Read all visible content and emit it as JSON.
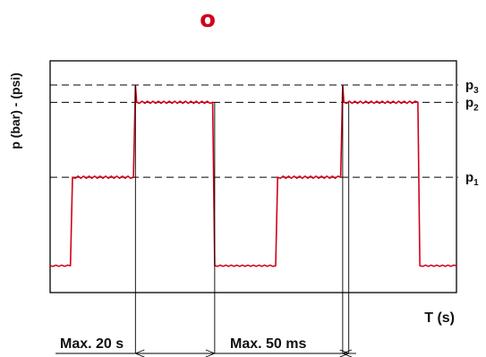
{
  "badge": "o",
  "colors": {
    "signal": "#d0021b",
    "axes": "#000000",
    "badge": "#d0021b"
  },
  "chart_data": {
    "type": "line",
    "ylabel": "p (bar) - (psi)",
    "xlabel": "T (s)",
    "grid": false,
    "reference_levels": [
      {
        "label": "p",
        "sub": "3",
        "level": 1.0
      },
      {
        "label": "p",
        "sub": "2",
        "level": 0.91
      },
      {
        "label": "p",
        "sub": "1",
        "level": 0.52
      }
    ],
    "series": [
      {
        "values": [
          {
            "x": 0.0,
            "y": 0.06
          },
          {
            "x": 0.05,
            "y": 0.06
          },
          {
            "x": 0.055,
            "y": 0.52
          },
          {
            "x": 0.205,
            "y": 0.52
          },
          {
            "x": 0.21,
            "y": 1.0
          },
          {
            "x": 0.213,
            "y": 0.91
          },
          {
            "x": 0.4,
            "y": 0.91
          },
          {
            "x": 0.405,
            "y": 0.06
          },
          {
            "x": 0.555,
            "y": 0.06
          },
          {
            "x": 0.56,
            "y": 0.52
          },
          {
            "x": 0.715,
            "y": 0.52
          },
          {
            "x": 0.72,
            "y": 1.0
          },
          {
            "x": 0.723,
            "y": 0.91
          },
          {
            "x": 0.905,
            "y": 0.91
          },
          {
            "x": 0.91,
            "y": 0.06
          },
          {
            "x": 1.0,
            "y": 0.06
          }
        ]
      }
    ],
    "annotations": [
      {
        "text": "Max. 20 s",
        "from_x": 0.21,
        "to_x": 0.405
      },
      {
        "text": "Max. 50 ms",
        "from_x": 0.72,
        "to_x": 0.735
      }
    ]
  }
}
